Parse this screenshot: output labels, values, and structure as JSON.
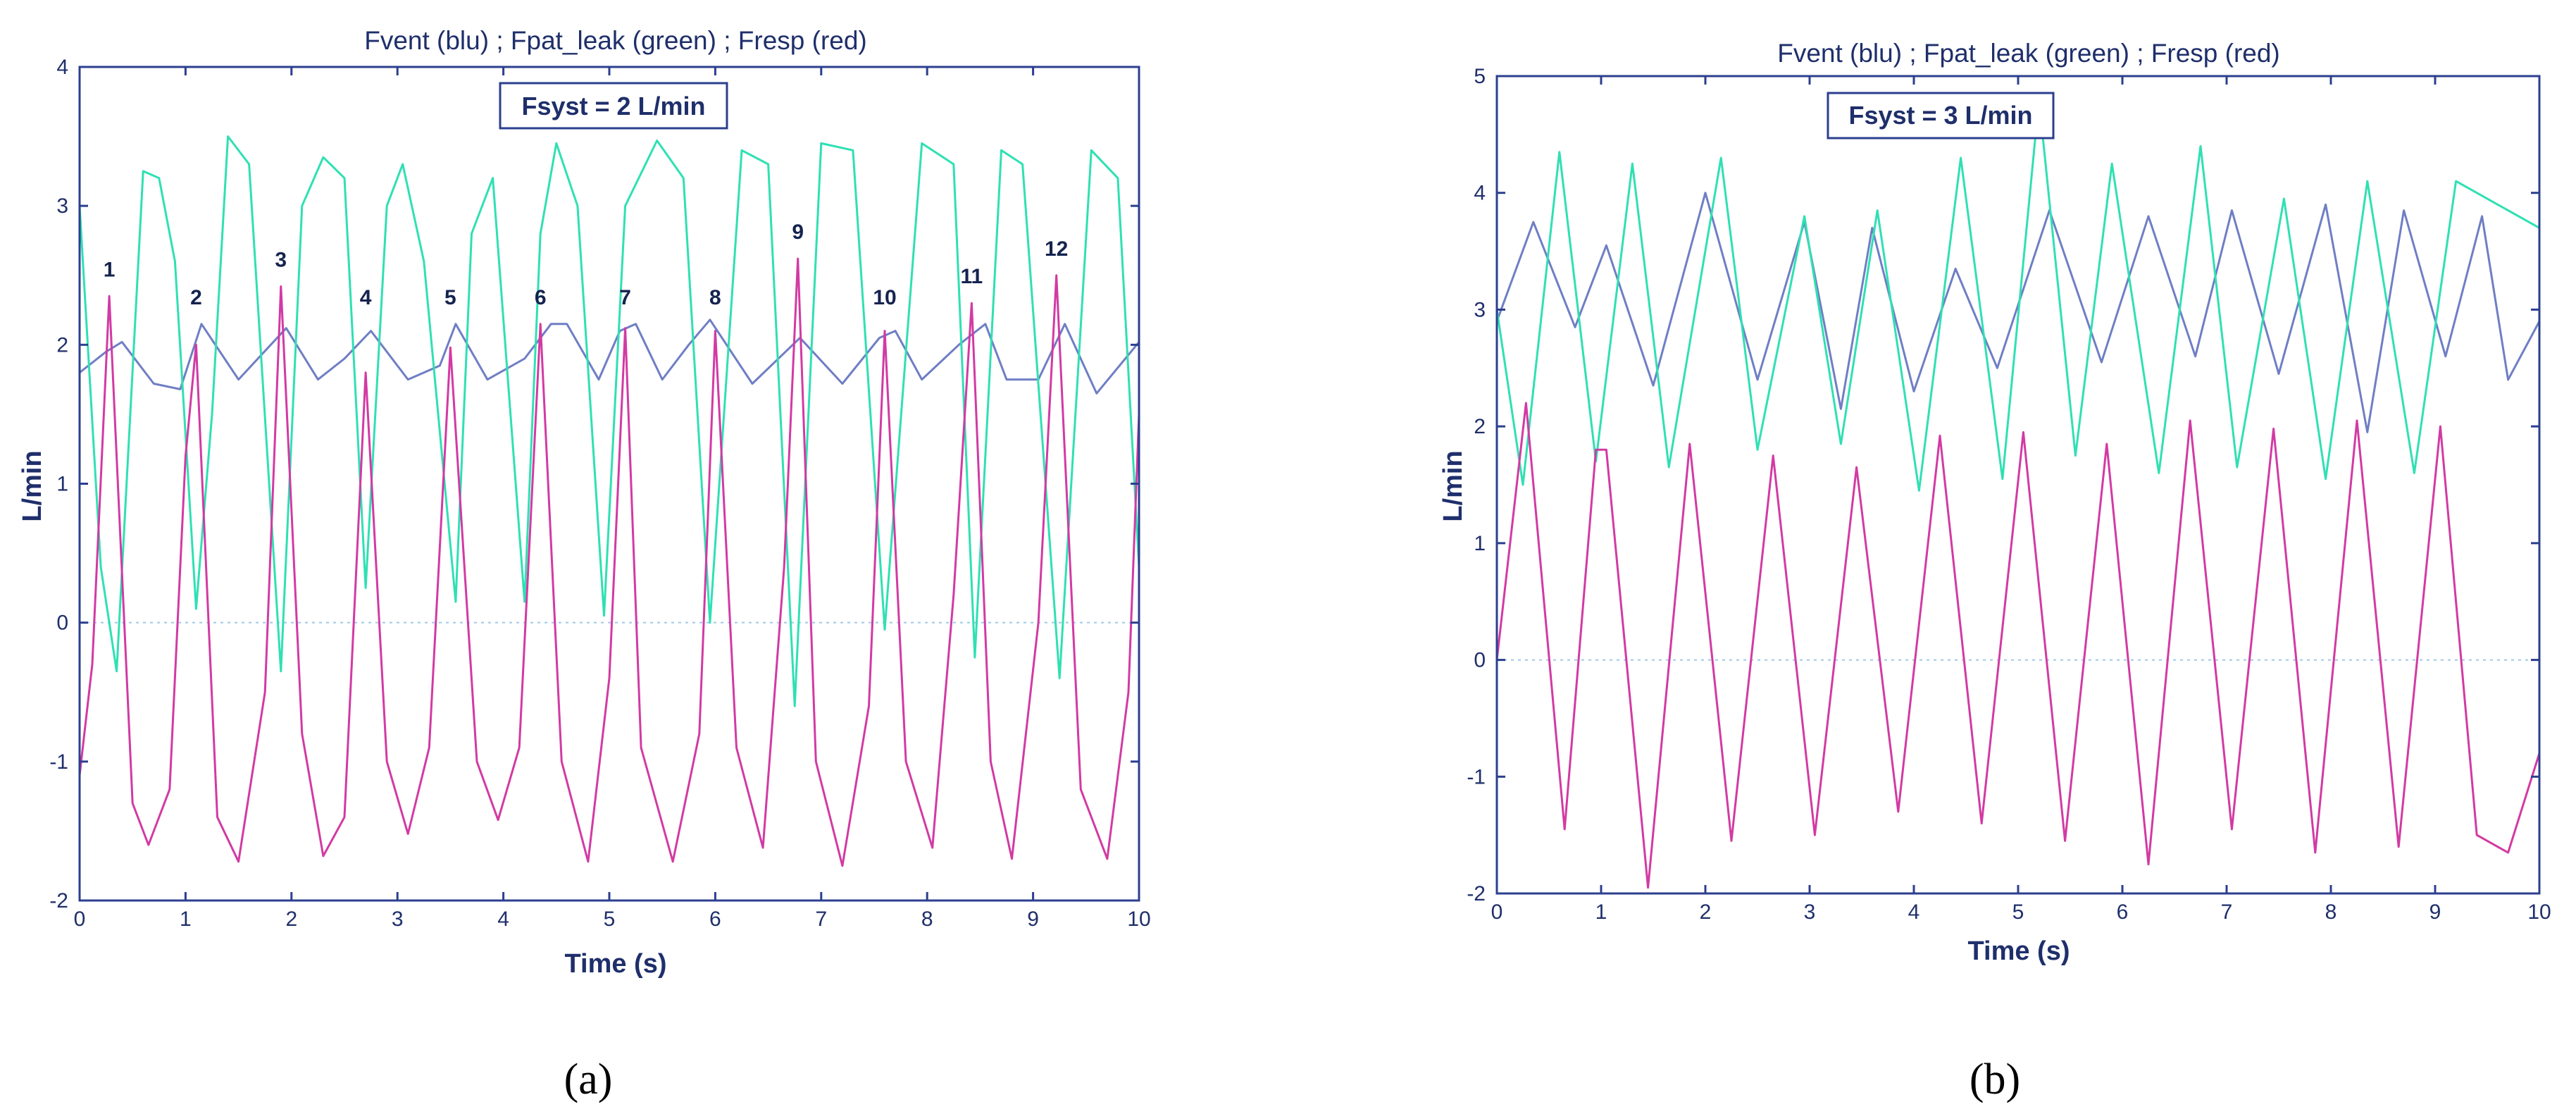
{
  "colors": {
    "vent": "#6f7ec4",
    "leak": "#2fe0b3",
    "resp": "#d23aa3",
    "axis": "#2b3f8f"
  },
  "panels": [
    {
      "caption": "(a)",
      "title": "Fvent (blu) ; Fpat_leak (green) ; Fresp (red)",
      "box_text": "Fsyst = 2 L/min",
      "peak_labels": [
        "1",
        "2",
        "3",
        "4",
        "5",
        "6",
        "7",
        "8",
        "9",
        "10",
        "11",
        "12"
      ]
    },
    {
      "caption": "(b)",
      "title": "Fvent (blu) ; Fpat_leak (green) ; Fresp (red)",
      "box_text": "Fsyst = 3 L/min"
    }
  ],
  "chart_data": [
    {
      "type": "line",
      "title": "Fvent (blu) ; Fpat_leak (green) ; Fresp (red)",
      "annotation": "Fsyst = 2 L/min",
      "xlabel": "Time (s)",
      "ylabel": "L/min",
      "xlim": [
        0,
        10
      ],
      "ylim": [
        -2,
        4
      ],
      "xticks": [
        0,
        1,
        2,
        3,
        4,
        5,
        6,
        7,
        8,
        9,
        10
      ],
      "yticks": [
        -2,
        -1,
        0,
        1,
        2,
        3,
        4
      ],
      "grid": false,
      "series": [
        {
          "key": "vent",
          "color": "#6f7ec4",
          "x": [
            0,
            0.25,
            0.4,
            0.7,
            0.95,
            1.15,
            1.5,
            1.95,
            2.25,
            2.5,
            2.75,
            3.1,
            3.4,
            3.55,
            3.85,
            4.2,
            4.45,
            4.6,
            4.9,
            5.1,
            5.25,
            5.5,
            5.75,
            5.95,
            6.35,
            6.8,
            7.2,
            7.55,
            7.7,
            7.95,
            8.3,
            8.55,
            8.75,
            9.05,
            9.3,
            9.6,
            10
          ],
          "y": [
            1.8,
            1.95,
            2.02,
            1.72,
            1.68,
            2.15,
            1.75,
            2.12,
            1.75,
            1.9,
            2.1,
            1.75,
            1.85,
            2.15,
            1.75,
            1.9,
            2.15,
            2.15,
            1.75,
            2.1,
            2.15,
            1.75,
            2.0,
            2.18,
            1.72,
            2.05,
            1.72,
            2.05,
            2.1,
            1.75,
            2.0,
            2.15,
            1.75,
            1.75,
            2.15,
            1.65,
            2.02
          ]
        },
        {
          "key": "leak",
          "color": "#2fe0b3",
          "x": [
            0,
            0.2,
            0.35,
            0.6,
            0.75,
            0.9,
            1.1,
            1.25,
            1.4,
            1.6,
            1.9,
            2.1,
            2.3,
            2.5,
            2.7,
            2.9,
            3.05,
            3.25,
            3.55,
            3.7,
            3.9,
            4.2,
            4.35,
            4.5,
            4.7,
            4.95,
            5.15,
            5.45,
            5.7,
            5.95,
            6.25,
            6.5,
            6.75,
            7.0,
            7.3,
            7.6,
            7.95,
            8.25,
            8.45,
            8.7,
            8.9,
            9.25,
            9.55,
            9.8,
            10
          ],
          "y": [
            3.0,
            0.4,
            -0.35,
            3.25,
            3.2,
            2.6,
            0.1,
            1.5,
            3.5,
            3.3,
            -0.35,
            3.0,
            3.35,
            3.2,
            0.25,
            3.0,
            3.3,
            2.6,
            0.15,
            2.8,
            3.2,
            0.15,
            2.8,
            3.45,
            3.0,
            0.05,
            3.0,
            3.47,
            3.2,
            0.0,
            3.4,
            3.3,
            -0.6,
            3.45,
            3.4,
            -0.05,
            3.45,
            3.3,
            -0.25,
            3.4,
            3.3,
            -0.4,
            3.4,
            3.2,
            0.4
          ]
        },
        {
          "key": "resp",
          "color": "#d23aa3",
          "x": [
            0,
            0.12,
            0.28,
            0.5,
            0.65,
            0.85,
            1.0,
            1.1,
            1.3,
            1.5,
            1.75,
            1.9,
            2.1,
            2.3,
            2.5,
            2.7,
            2.9,
            3.1,
            3.3,
            3.5,
            3.75,
            3.95,
            4.15,
            4.35,
            4.55,
            4.8,
            5.0,
            5.15,
            5.3,
            5.6,
            5.85,
            6.0,
            6.2,
            6.45,
            6.65,
            6.78,
            6.95,
            7.2,
            7.45,
            7.6,
            7.8,
            8.05,
            8.25,
            8.42,
            8.6,
            8.8,
            9.05,
            9.22,
            9.45,
            9.7,
            9.9,
            10
          ],
          "y": [
            -1.1,
            -0.3,
            2.35,
            -1.3,
            -1.6,
            -1.2,
            1.2,
            2.0,
            -1.4,
            -1.72,
            -0.5,
            2.42,
            -0.8,
            -1.68,
            -1.4,
            1.8,
            -1.0,
            -1.52,
            -0.9,
            1.98,
            -1.0,
            -1.42,
            -0.9,
            2.15,
            -1.0,
            -1.72,
            -0.4,
            2.12,
            -0.9,
            -1.72,
            -0.8,
            2.1,
            -0.9,
            -1.62,
            0.4,
            2.62,
            -1.0,
            -1.75,
            -0.6,
            2.1,
            -1.0,
            -1.62,
            0.2,
            2.3,
            -1.0,
            -1.7,
            0.0,
            2.5,
            -1.2,
            -1.7,
            -0.5,
            1.5
          ]
        }
      ]
    },
    {
      "type": "line",
      "title": "Fvent (blu) ; Fpat_leak (green) ; Fresp (red)",
      "annotation": "Fsyst = 3 L/min",
      "xlabel": "Time (s)",
      "ylabel": "L/min",
      "xlim": [
        0,
        10
      ],
      "ylim": [
        -2,
        5
      ],
      "xticks": [
        0,
        1,
        2,
        3,
        4,
        5,
        6,
        7,
        8,
        9,
        10
      ],
      "yticks": [
        -2,
        -1,
        0,
        1,
        2,
        3,
        4,
        5
      ],
      "grid": false,
      "series": [
        {
          "key": "vent",
          "color": "#6f7ec4",
          "x": [
            0,
            0.35,
            0.75,
            1.05,
            1.5,
            2.0,
            2.5,
            2.95,
            3.3,
            3.6,
            4.0,
            4.4,
            4.8,
            5.3,
            5.8,
            6.25,
            6.7,
            7.05,
            7.5,
            7.95,
            8.35,
            8.7,
            9.1,
            9.45,
            9.7,
            10
          ],
          "y": [
            2.9,
            3.75,
            2.85,
            3.55,
            2.35,
            4.0,
            2.4,
            3.75,
            2.15,
            3.7,
            2.3,
            3.35,
            2.5,
            3.85,
            2.55,
            3.8,
            2.6,
            3.85,
            2.45,
            3.9,
            1.95,
            3.85,
            2.6,
            3.8,
            2.4,
            2.9
          ]
        },
        {
          "key": "leak",
          "color": "#2fe0b3",
          "x": [
            0,
            0.25,
            0.6,
            0.95,
            1.3,
            1.65,
            2.15,
            2.5,
            2.95,
            3.3,
            3.65,
            4.05,
            4.45,
            4.85,
            5.2,
            5.55,
            5.9,
            6.35,
            6.75,
            7.1,
            7.55,
            7.95,
            8.35,
            8.8,
            9.2,
            9.6,
            10
          ],
          "y": [
            3.0,
            1.5,
            4.35,
            1.7,
            4.25,
            1.65,
            4.3,
            1.8,
            3.8,
            1.85,
            3.85,
            1.45,
            4.3,
            1.55,
            4.8,
            1.75,
            4.25,
            1.6,
            4.4,
            1.65,
            3.95,
            1.55,
            4.1,
            1.6,
            4.1,
            3.9,
            3.7
          ]
        },
        {
          "key": "resp",
          "color": "#d23aa3",
          "x": [
            0,
            0.28,
            0.65,
            0.95,
            1.05,
            1.45,
            1.85,
            2.25,
            2.65,
            3.05,
            3.45,
            3.85,
            4.25,
            4.65,
            5.05,
            5.45,
            5.85,
            6.25,
            6.65,
            7.05,
            7.45,
            7.85,
            8.25,
            8.65,
            9.05,
            9.4,
            9.7,
            10
          ],
          "y": [
            0.0,
            2.2,
            -1.45,
            1.8,
            1.8,
            -1.95,
            1.85,
            -1.55,
            1.75,
            -1.5,
            1.65,
            -1.3,
            1.92,
            -1.4,
            1.95,
            -1.55,
            1.85,
            -1.75,
            2.05,
            -1.45,
            1.98,
            -1.65,
            2.05,
            -1.6,
            2.0,
            -1.5,
            -1.65,
            -0.8
          ]
        }
      ]
    }
  ]
}
